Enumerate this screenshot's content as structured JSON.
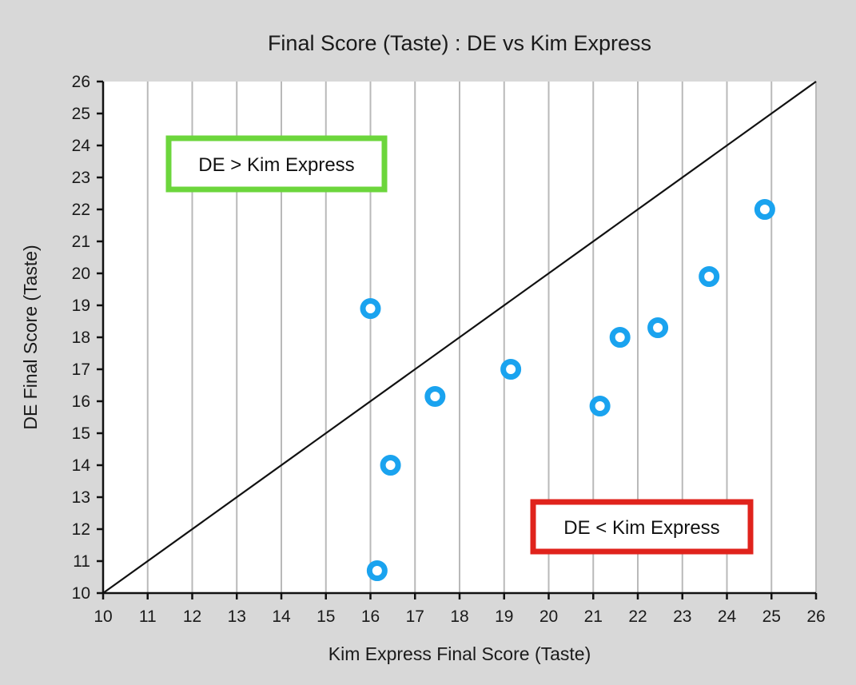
{
  "chart_data": {
    "type": "scatter",
    "title": "Final Score (Taste) : DE vs Kim Express",
    "xlabel": "Kim Express Final Score (Taste)",
    "ylabel": "DE Final Score (Taste)",
    "xlim": [
      10,
      26
    ],
    "ylim": [
      10,
      26
    ],
    "xticks": [
      "10",
      "11",
      "12",
      "13",
      "14",
      "15",
      "16",
      "17",
      "18",
      "19",
      "20",
      "21",
      "22",
      "23",
      "24",
      "25",
      "26"
    ],
    "yticks": [
      "10",
      "11",
      "12",
      "13",
      "14",
      "15",
      "16",
      "17",
      "18",
      "19",
      "20",
      "21",
      "22",
      "23",
      "24",
      "25",
      "26"
    ],
    "grid": "vertical",
    "reference_line": {
      "type": "y=x"
    },
    "series": [
      {
        "points": [
          {
            "x": 16.0,
            "y": 18.9
          },
          {
            "x": 16.15,
            "y": 10.7
          },
          {
            "x": 16.45,
            "y": 14.0
          },
          {
            "x": 17.45,
            "y": 16.15
          },
          {
            "x": 19.15,
            "y": 17.0
          },
          {
            "x": 21.15,
            "y": 15.85
          },
          {
            "x": 21.6,
            "y": 18.0
          },
          {
            "x": 22.45,
            "y": 18.3
          },
          {
            "x": 23.6,
            "y": 19.9
          },
          {
            "x": 24.85,
            "y": 22.0
          }
        ],
        "color": "#1aa3ef"
      }
    ],
    "annotations": [
      {
        "text": "DE > Kim Express",
        "color": "#6cd63c",
        "position": "top-left"
      },
      {
        "text": "DE < Kim Express",
        "color": "#e0231c",
        "position": "bottom-right"
      }
    ]
  }
}
